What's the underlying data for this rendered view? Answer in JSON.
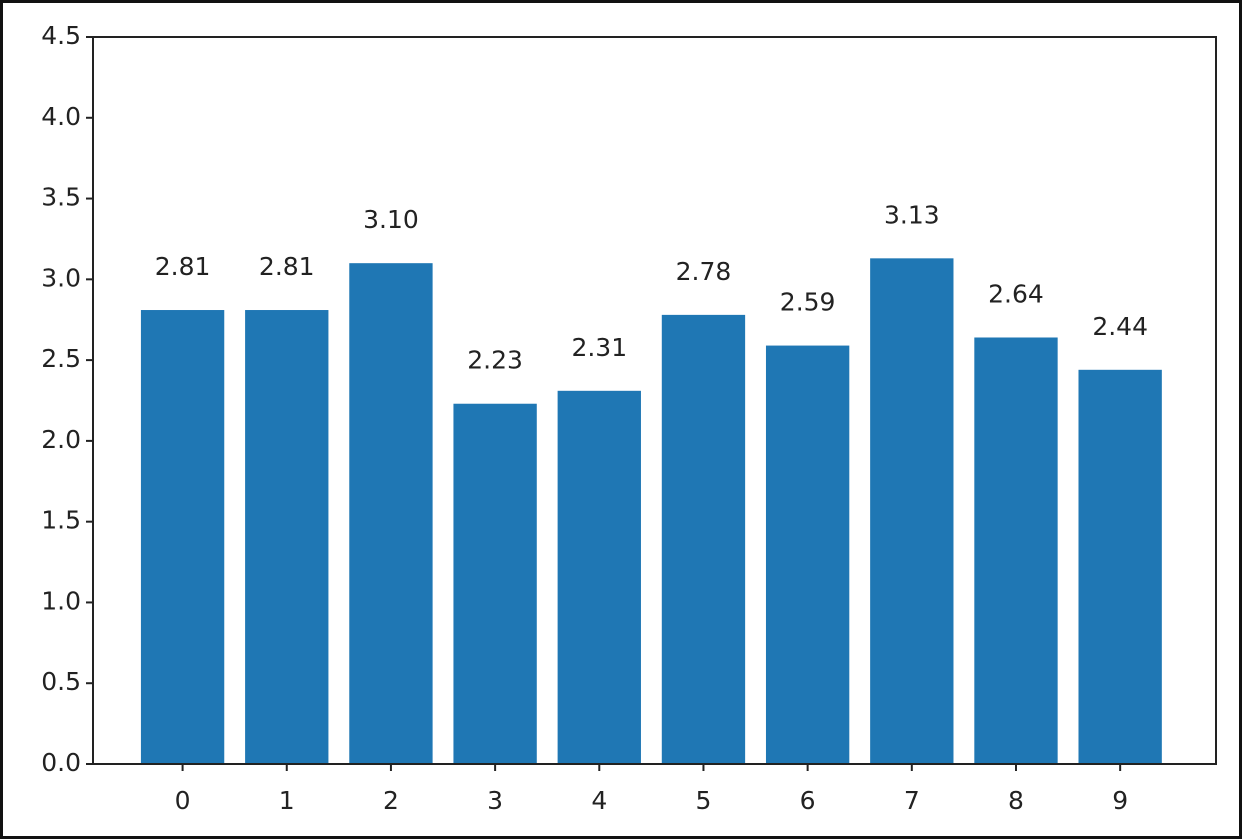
{
  "chart_data": {
    "type": "bar",
    "categories": [
      "0",
      "1",
      "2",
      "3",
      "4",
      "5",
      "6",
      "7",
      "8",
      "9"
    ],
    "values": [
      2.81,
      2.81,
      3.1,
      2.23,
      2.31,
      2.78,
      2.59,
      3.13,
      2.64,
      2.44
    ],
    "value_labels": [
      "2.81",
      "2.81",
      "3.10",
      "2.23",
      "2.31",
      "2.78",
      "2.59",
      "3.13",
      "2.64",
      "2.44"
    ],
    "color": "#1f77b4",
    "ylim": [
      0,
      4.5
    ],
    "yticks": [
      {
        "value": 0,
        "label": "0.0"
      },
      0.5,
      {
        "value": 1,
        "label": "1.0"
      },
      1.5,
      {
        "value": 2,
        "label": "2.0"
      },
      2.5,
      {
        "value": 3,
        "label": "3.0"
      },
      3.5,
      {
        "value": 4,
        "label": "4.0"
      },
      4.5
    ],
    "grid": false
  }
}
